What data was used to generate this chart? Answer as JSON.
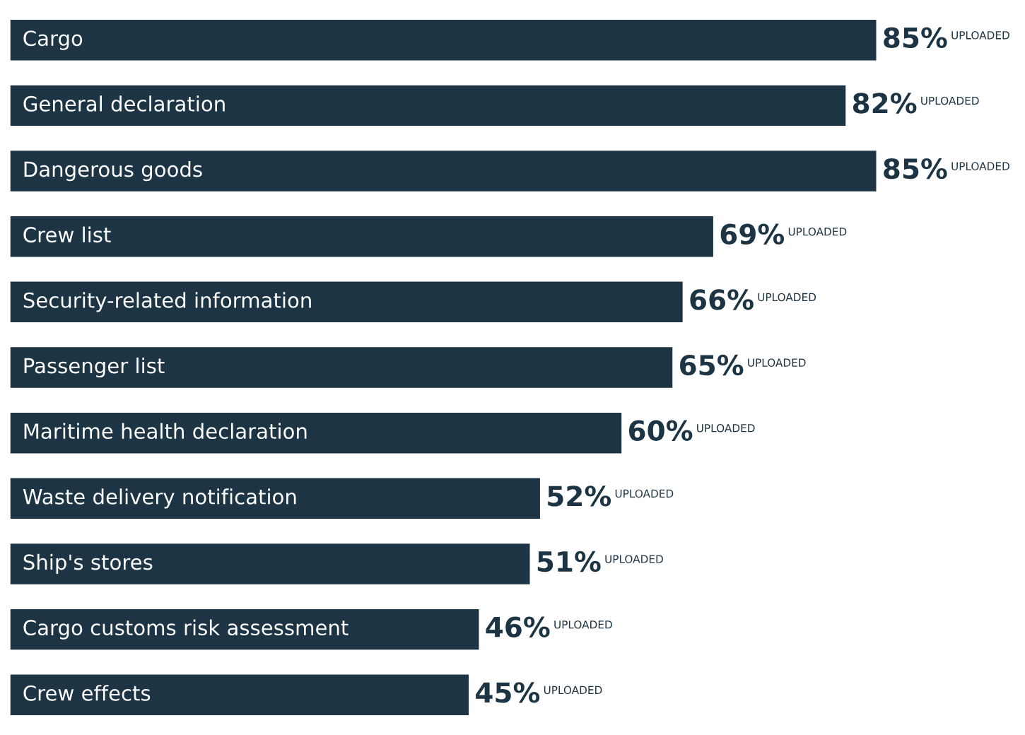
{
  "chart_data": {
    "type": "bar",
    "orientation": "horizontal",
    "categories": [
      "Cargo",
      "General declaration",
      "Dangerous goods",
      "Crew list",
      "Security-related information",
      "Passenger list",
      "Maritime health declaration",
      "Waste delivery notification",
      "Ship's stores",
      "Cargo customs risk assessment",
      "Crew effects"
    ],
    "values": [
      85,
      82,
      85,
      69,
      66,
      65,
      60,
      52,
      51,
      46,
      45
    ],
    "value_labels": [
      "85%",
      "82%",
      "85%",
      "69%",
      "66%",
      "65%",
      "60%",
      "52%",
      "51%",
      "46%",
      "45%"
    ],
    "color": "#1c3443",
    "annotations": [
      "UPLOADED",
      "UPLOADED",
      "UPLOADED",
      "UPLOADED",
      "UPLOADED",
      "UPLOADED",
      "UPLOADED",
      "UPLOADED",
      "UPLOADED",
      "UPLOADED",
      "UPLOADED"
    ]
  }
}
